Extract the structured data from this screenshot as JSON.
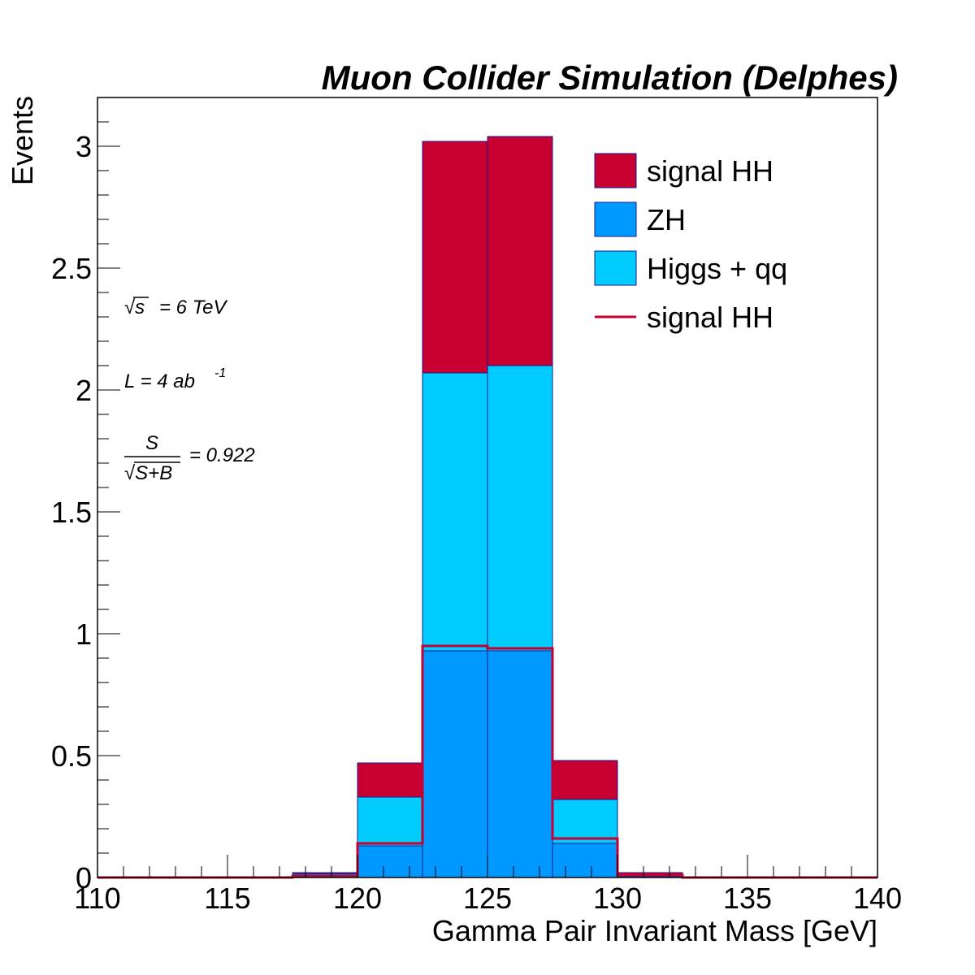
{
  "chart_data": {
    "type": "bar",
    "stacked": true,
    "title": "Muon Collider Simulation (Delphes)",
    "xlabel": "Gamma Pair Invariant Mass [GeV]",
    "ylabel": "Events",
    "xlim": [
      110,
      140
    ],
    "ylim": [
      0,
      3.2
    ],
    "x_ticks": [
      "110",
      "115",
      "120",
      "125",
      "130",
      "135",
      "140"
    ],
    "y_ticks": [
      "0",
      "0.5",
      "1",
      "1.5",
      "2",
      "2.5",
      "3"
    ],
    "bin_edges": [
      110,
      112.5,
      115,
      117.5,
      120,
      122.5,
      125,
      127.5,
      130,
      132.5,
      135,
      137.5,
      140
    ],
    "series": [
      {
        "name": "ZH",
        "color": "#0099ff",
        "values": [
          0,
          0,
          0,
          0.01,
          0.13,
          0.93,
          0.93,
          0.14,
          0.005,
          0,
          0,
          0
        ]
      },
      {
        "name": "Higgs + qq",
        "color": "#00ccff",
        "values": [
          0,
          0,
          0,
          0.005,
          0.2,
          1.14,
          1.17,
          0.18,
          0.005,
          0,
          0,
          0
        ]
      },
      {
        "name": "signal HH",
        "color": "#c80032",
        "values": [
          0,
          0,
          0,
          0.005,
          0.14,
          0.95,
          0.94,
          0.16,
          0.01,
          0,
          0,
          0
        ]
      }
    ],
    "overlay": {
      "name": "signal HH",
      "color": "#c80032",
      "values": [
        0,
        0,
        0,
        0.005,
        0.14,
        0.95,
        0.94,
        0.16,
        0.01,
        0,
        0,
        0
      ]
    },
    "legend": {
      "position": "top-right",
      "entries": [
        {
          "label": "signal HH",
          "style": "box",
          "color": "#c80032"
        },
        {
          "label": "ZH",
          "style": "box",
          "color": "#0099ff"
        },
        {
          "label": "Higgs + qq",
          "style": "box",
          "color": "#00ccff"
        },
        {
          "label": "signal HH",
          "style": "line",
          "color": "#c80032"
        }
      ]
    },
    "annotations": {
      "sqrt_s": {
        "symbol": "√s",
        "text": "= 6 TeV"
      },
      "lumi": {
        "base": "L = 4 ab",
        "sup": "-1"
      },
      "significance": {
        "numerator": "S",
        "denominator": "√S+B",
        "text": "= 0.922"
      }
    }
  }
}
